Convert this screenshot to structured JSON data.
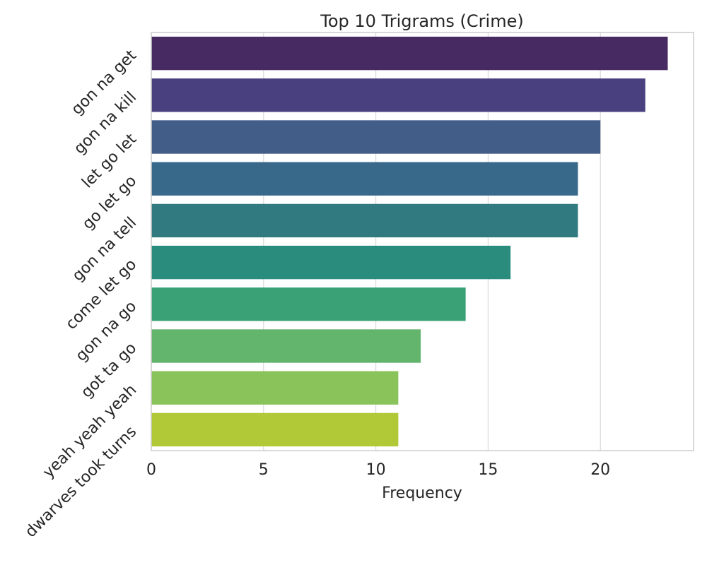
{
  "chart_data": {
    "type": "bar",
    "orientation": "horizontal",
    "title": "Top 10 Trigrams (Crime)",
    "xlabel": "Frequency",
    "ylabel": "",
    "categories": [
      "gon na get",
      "gon na kill",
      "let go let",
      "go let go",
      "gon na tell",
      "come let go",
      "gon na go",
      "got ta go",
      "yeah yeah yeah",
      "dwarves took turns"
    ],
    "values": [
      23,
      22,
      20,
      19,
      19,
      16,
      14,
      12,
      11,
      11
    ],
    "colors": [
      "#482A63",
      "#49417F",
      "#425D88",
      "#38698A",
      "#317A80",
      "#2A8C7C",
      "#3AA176",
      "#63B56E",
      "#89C35A",
      "#B1C837"
    ],
    "xlim": [
      0,
      24.15
    ],
    "xticks": [
      0,
      5,
      10,
      15,
      20
    ],
    "xtick_labels": [
      "0",
      "5",
      "10",
      "15",
      "20"
    ],
    "grid": true
  }
}
